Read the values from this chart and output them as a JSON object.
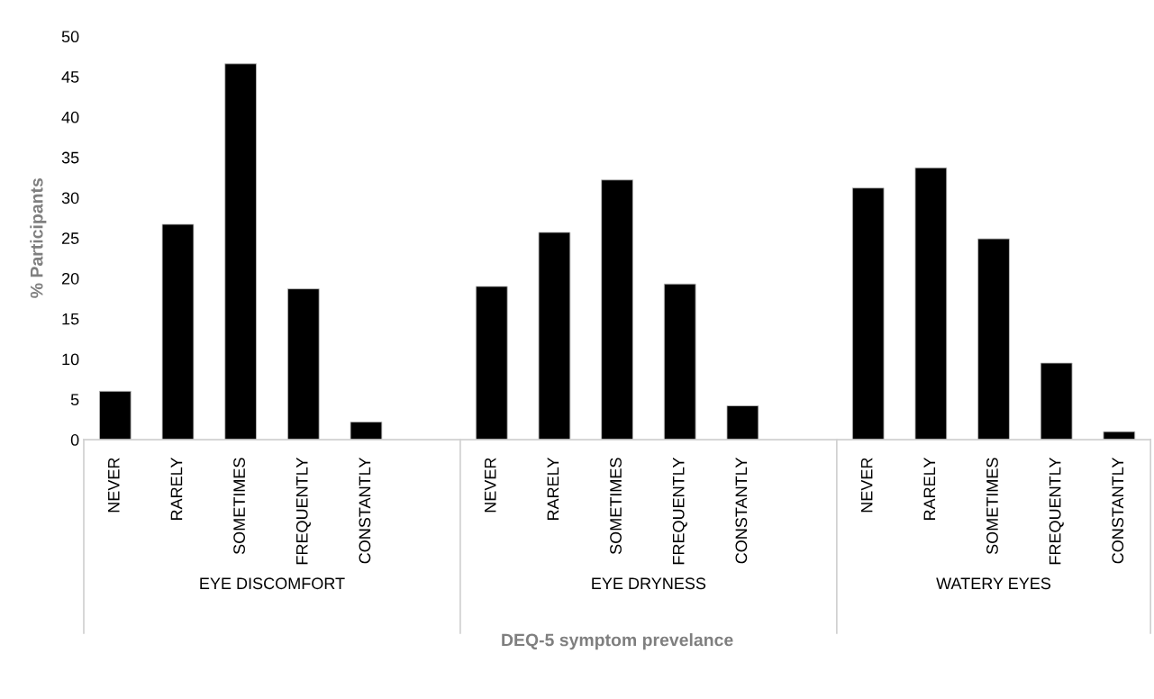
{
  "chart_data": {
    "type": "bar",
    "ylabel": "% Participants",
    "xlabel": "DEQ-5 symptom prevelance",
    "categories": [
      "NEVER",
      "RARELY",
      "SOMETIMES",
      "FREQUENTLY",
      "CONSTANTLY",
      null,
      "NEVER",
      "RARELY",
      "SOMETIMES",
      "FREQUENTLY",
      "CONSTANTLY",
      null,
      "NEVER",
      "RARELY",
      "SOMETIMES",
      "FREQUENTLY",
      "CONSTANTLY"
    ],
    "values": [
      6.0,
      26.7,
      46.6,
      18.7,
      2.2,
      null,
      19.0,
      25.7,
      32.2,
      19.3,
      4.2,
      null,
      31.2,
      33.7,
      24.9,
      9.5,
      1.0
    ],
    "color": "#000000",
    "annotations": [
      "EYE DISCOMFORT",
      "EYE DRYNESS",
      "WATERY EYES"
    ],
    "ylim": [
      0,
      50
    ],
    "yticks": [
      0,
      5,
      10,
      15,
      20,
      25,
      30,
      35,
      40,
      45,
      50
    ],
    "grid": false
  }
}
